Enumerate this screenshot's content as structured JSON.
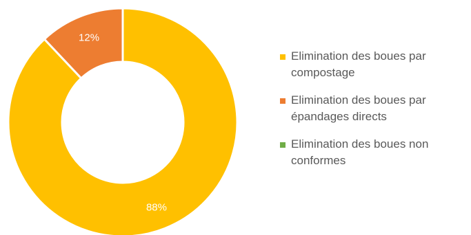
{
  "chart_data": {
    "type": "pie",
    "style": "donut",
    "slices": [
      {
        "label": "Elimination des boues par compostage",
        "value": 88,
        "display": "88%",
        "color": "#FFC000"
      },
      {
        "label": "Elimination des boues par épandages directs",
        "value": 12,
        "display": "12%",
        "color": "#ED7D31"
      },
      {
        "label": "Elimination des boues non conformes",
        "value": 0,
        "display": "",
        "color": "#70AD47"
      }
    ],
    "legend_position": "right"
  }
}
